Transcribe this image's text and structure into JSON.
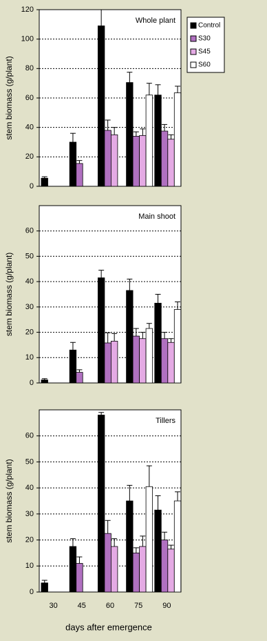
{
  "chart_data": [
    {
      "type": "bar",
      "title": "Whole plant",
      "ylabel": "stem  biomass  (g/plant)",
      "legend": "upper right outside",
      "grid": true,
      "ylim": [
        0,
        120
      ],
      "yticks": [
        0,
        20,
        40,
        60,
        80,
        100,
        120
      ],
      "series": [
        {
          "name": "Control",
          "color": "#000000",
          "values": [
            5.5,
            30,
            109,
            70.5,
            62
          ],
          "errors": [
            1,
            6,
            11,
            7,
            7
          ]
        },
        {
          "name": "S30",
          "color": "#b070c0",
          "values": [
            null,
            15.5,
            38,
            34,
            37.5
          ],
          "errors": [
            null,
            2,
            7,
            3,
            4.5
          ]
        },
        {
          "name": "S45",
          "color": "#e4aae4",
          "values": [
            null,
            null,
            35,
            34.5,
            32
          ],
          "errors": [
            null,
            null,
            5,
            4.5,
            3
          ]
        },
        {
          "name": "S60",
          "color": "#ffffff",
          "values": [
            null,
            null,
            null,
            62,
            63.5
          ],
          "errors": [
            null,
            null,
            null,
            8,
            4.5
          ]
        }
      ]
    },
    {
      "type": "bar",
      "title": "Main shoot",
      "ylabel": "stem  biomass  (g/plant)",
      "grid": true,
      "ylim": [
        0,
        70
      ],
      "yticks": [
        0,
        10,
        20,
        30,
        40,
        50,
        60
      ],
      "series": [
        {
          "color": "#000000",
          "values": [
            1.2,
            13,
            41.5,
            36.5,
            31.5
          ],
          "errors": [
            0.5,
            3,
            3,
            4.5,
            3.5
          ]
        },
        {
          "color": "#b070c0",
          "values": [
            null,
            4.2,
            15.8,
            18.5,
            17.5
          ],
          "errors": [
            null,
            1,
            4,
            3,
            2.5
          ]
        },
        {
          "color": "#e4aae4",
          "values": [
            null,
            null,
            16.5,
            17.5,
            16
          ],
          "errors": [
            null,
            null,
            3,
            2.5,
            1.5
          ]
        },
        {
          "color": "#ffffff",
          "values": [
            null,
            null,
            null,
            21.5,
            29
          ],
          "errors": [
            null,
            null,
            null,
            2,
            3
          ]
        }
      ]
    },
    {
      "type": "bar",
      "title": "Tillers",
      "ylabel": "stem  biomass  (g/plant)",
      "xlabel": "days after emergence",
      "grid": true,
      "categories": [
        "30",
        "45",
        "60",
        "75",
        "90"
      ],
      "ylim": [
        0,
        70
      ],
      "yticks": [
        0,
        10,
        20,
        30,
        40,
        50,
        60
      ],
      "series": [
        {
          "color": "#000000",
          "values": [
            3.5,
            17.5,
            68,
            35,
            31.5
          ],
          "errors": [
            1,
            3,
            1,
            6,
            5.5
          ]
        },
        {
          "color": "#b070c0",
          "values": [
            null,
            11,
            22.5,
            15,
            20
          ],
          "errors": [
            null,
            2.5,
            5,
            2,
            3
          ]
        },
        {
          "color": "#e4aae4",
          "values": [
            null,
            null,
            17.5,
            17.5,
            16.5
          ],
          "errors": [
            null,
            null,
            3,
            4,
            1.5
          ]
        },
        {
          "color": "#ffffff",
          "values": [
            null,
            null,
            null,
            40.5,
            35
          ],
          "errors": [
            null,
            null,
            null,
            8,
            3.5
          ]
        }
      ]
    }
  ]
}
